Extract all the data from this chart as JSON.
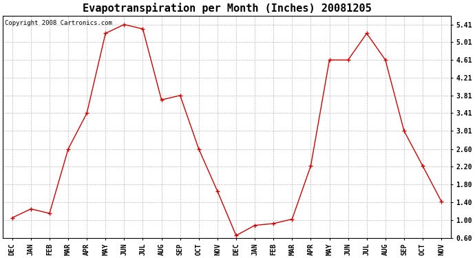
{
  "title": "Evapotranspiration per Month (Inches) 20081205",
  "copyright_text": "Copyright 2008 Cartronics.com",
  "x_labels": [
    "DEC",
    "JAN",
    "FEB",
    "MAR",
    "APR",
    "MAY",
    "JUN",
    "JUL",
    "AUG",
    "SEP",
    "OCT",
    "NOV",
    "DEC",
    "JAN",
    "FEB",
    "MAR",
    "APR",
    "MAY",
    "JUN",
    "JUL",
    "AUG",
    "SEP",
    "OCT",
    "NOV"
  ],
  "y_values": [
    1.05,
    1.25,
    1.15,
    2.6,
    3.41,
    5.21,
    5.41,
    5.31,
    3.71,
    3.81,
    2.6,
    1.65,
    0.65,
    0.88,
    0.92,
    1.02,
    2.22,
    4.61,
    4.61,
    5.21,
    4.61,
    3.01,
    2.22,
    1.42
  ],
  "line_color": "#cc0000",
  "marker": "+",
  "marker_size": 5,
  "bg_color": "#ffffff",
  "plot_bg_color": "#ffffff",
  "grid_color": "#bbbbbb",
  "ylim_min": 0.6,
  "ylim_max": 5.61,
  "yticks": [
    0.6,
    1.0,
    1.4,
    1.8,
    2.2,
    2.6,
    3.01,
    3.41,
    3.81,
    4.21,
    4.61,
    5.01,
    5.41
  ],
  "title_fontsize": 11,
  "tick_fontsize": 7,
  "copyright_fontsize": 6.5
}
